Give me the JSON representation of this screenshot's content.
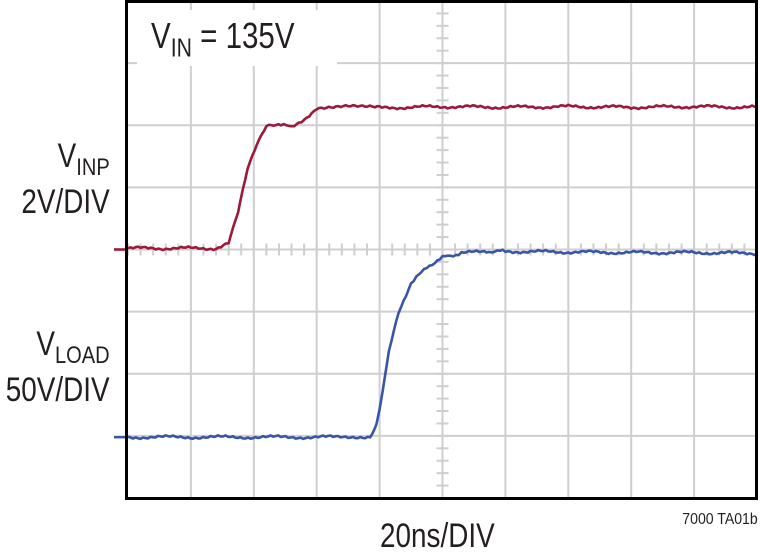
{
  "chart_data": {
    "type": "line",
    "title": "",
    "annotation": {
      "main": "V",
      "sub": "IN",
      "rest": " = 135V"
    },
    "xlabel": "20ns/DIV",
    "figure_id": "7000 TA01b",
    "grid": {
      "on": true,
      "x_divisions": 10,
      "y_divisions": 8,
      "color": "#cfcfcf"
    },
    "xlim": [
      0,
      10
    ],
    "ylim": [
      0,
      8
    ],
    "series": [
      {
        "name": "VINP",
        "label_main": "V",
        "label_sub": "INP",
        "scale": "2V/DIV",
        "color": "#9b1a3a",
        "ground_marker_div": 4.0,
        "points": [
          [
            0,
            4.02
          ],
          [
            1.4,
            4.02
          ],
          [
            1.6,
            4.1
          ],
          [
            1.75,
            4.6
          ],
          [
            1.9,
            5.3
          ],
          [
            2.05,
            5.7
          ],
          [
            2.2,
            6.0
          ],
          [
            2.35,
            6.02
          ],
          [
            2.6,
            5.97
          ],
          [
            2.8,
            6.1
          ],
          [
            3.0,
            6.27
          ],
          [
            3.5,
            6.3
          ],
          [
            4,
            6.28
          ],
          [
            5,
            6.3
          ],
          [
            6,
            6.29
          ],
          [
            7,
            6.3
          ],
          [
            8,
            6.29
          ],
          [
            9,
            6.3
          ],
          [
            10,
            6.29
          ]
        ]
      },
      {
        "name": "VLOAD",
        "label_main": "V",
        "label_sub": "LOAD",
        "scale": "50V/DIV",
        "color": "#3a55a8",
        "ground_marker_div": 0.98,
        "points": [
          [
            0,
            0.98
          ],
          [
            3.3,
            0.98
          ],
          [
            3.85,
            0.99
          ],
          [
            3.95,
            1.2
          ],
          [
            4.05,
            1.7
          ],
          [
            4.15,
            2.4
          ],
          [
            4.3,
            3.0
          ],
          [
            4.5,
            3.45
          ],
          [
            4.75,
            3.72
          ],
          [
            5.0,
            3.87
          ],
          [
            5.3,
            3.94
          ],
          [
            5.7,
            3.97
          ],
          [
            6,
            3.97
          ],
          [
            7,
            3.96
          ],
          [
            8,
            3.95
          ],
          [
            9,
            3.95
          ],
          [
            10,
            3.94
          ]
        ]
      }
    ]
  },
  "labels": {
    "vinp_scale": "2V/DIV",
    "vload_scale": "50V/DIV"
  }
}
